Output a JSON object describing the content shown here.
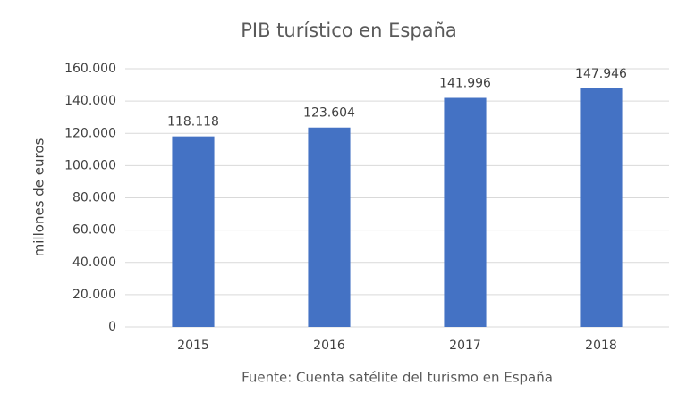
{
  "chart_data": {
    "type": "bar",
    "title": "PIB turístico en España",
    "y_label": "millones de euros",
    "x_label": "Fuente: Cuenta satélite del turismo en España",
    "categories": [
      "2015",
      "2016",
      "2017",
      "2018"
    ],
    "values": [
      118118,
      123604,
      141996,
      147946
    ],
    "value_labels": [
      "118.118",
      "123.604",
      "141.996",
      "147.946"
    ],
    "color": "#4472c4",
    "ylim": [
      0,
      160000
    ],
    "yticks": [
      0,
      {
        "value": 20000,
        "label": "20.000"
      },
      {
        "value": 40000,
        "label": "40.000"
      },
      {
        "value": 60000,
        "label": "60.000"
      },
      {
        "value": 80000,
        "label": "80.000"
      },
      {
        "value": 100000,
        "label": "100.000"
      },
      {
        "value": 120000,
        "label": "120.000"
      },
      {
        "value": 140000,
        "label": "140.000"
      },
      {
        "value": 160000,
        "label": "160.000"
      }
    ],
    "grid": true
  }
}
